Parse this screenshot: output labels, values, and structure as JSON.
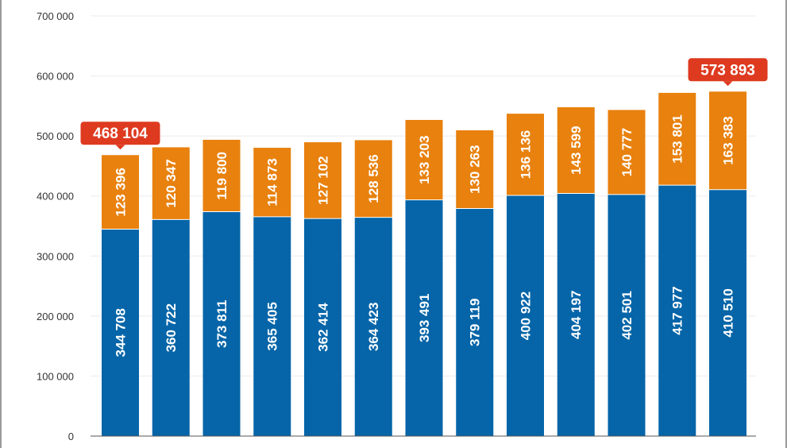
{
  "chart_data": {
    "type": "bar",
    "stacked": true,
    "categories": [
      "",
      "",
      "",
      "",
      "",
      "",
      "",
      "",
      "",
      "",
      "",
      "",
      ""
    ],
    "series": [
      {
        "values": [
          344708,
          360722,
          373811,
          365405,
          362414,
          364423,
          393491,
          379119,
          400922,
          404197,
          402501,
          417977,
          410510
        ],
        "labels": [
          "344 708",
          "360 722",
          "373 811",
          "365 405",
          "362 414",
          "364 423",
          "393 491",
          "379 119",
          "400 922",
          "404 197",
          "402 501",
          "417 977",
          "410 510"
        ],
        "color": "#0565a8"
      },
      {
        "values": [
          123396,
          120347,
          119800,
          114873,
          127102,
          128536,
          133203,
          130263,
          136136,
          143599,
          140777,
          153801,
          163383
        ],
        "labels": [
          "123 396",
          "120 347",
          "119 800",
          "114 873",
          "127 102",
          "128 536",
          "133 203",
          "130 263",
          "136 136",
          "143 599",
          "140 777",
          "153 801",
          "163 383"
        ],
        "color": "#e8810e"
      }
    ],
    "ylim": [
      0,
      700000
    ],
    "y_ticks": [
      0,
      100000,
      200000,
      300000,
      400000,
      500000,
      600000,
      700000
    ],
    "y_tick_labels": [
      "0",
      "100 000",
      "200 000",
      "300 000",
      "400 000",
      "500 000",
      "600 000",
      "700 000"
    ],
    "grid": true,
    "callouts": [
      {
        "bar_index": 0,
        "label": "468 104",
        "value": 468104
      },
      {
        "bar_index": 12,
        "label": "573 893",
        "value": 573893
      }
    ],
    "callout_color": "#de3a1f"
  }
}
